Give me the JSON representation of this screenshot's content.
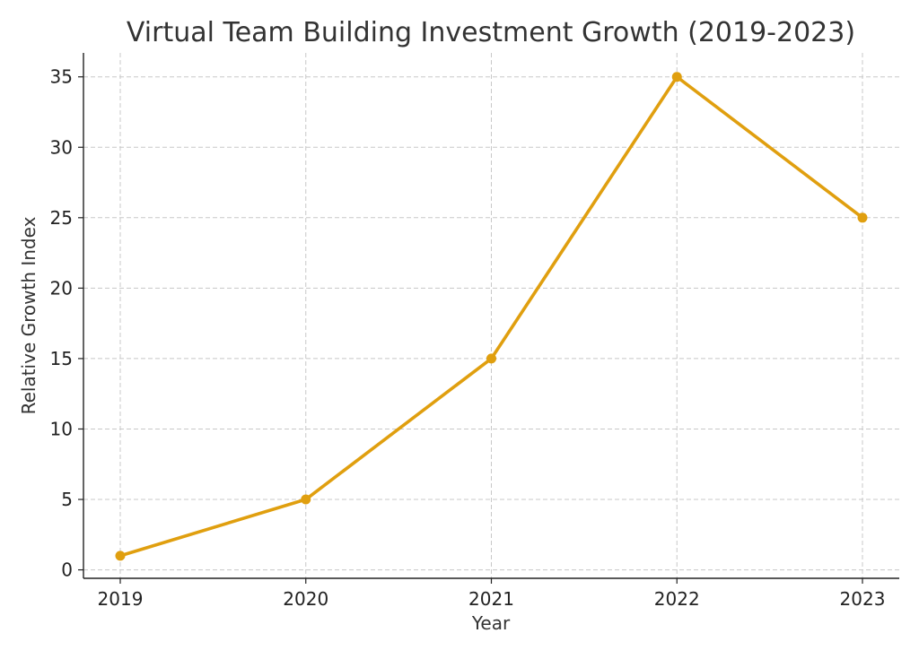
{
  "chart_data": {
    "type": "line",
    "title": "Virtual Team Building Investment Growth (2019-2023)",
    "xlabel": "Year",
    "ylabel": "Relative Growth Index",
    "x": [
      "2019",
      "2020",
      "2021",
      "2022",
      "2023"
    ],
    "series": [
      {
        "values": [
          1,
          5,
          15,
          35,
          25
        ],
        "color": "#e09f0f",
        "marker": "circle"
      }
    ],
    "yticks": [
      0,
      5,
      10,
      15,
      20,
      25,
      30,
      35
    ],
    "ylim": [
      -0.6,
      36.7
    ],
    "grid": true,
    "grid_style": "dashed",
    "legend": "none"
  }
}
